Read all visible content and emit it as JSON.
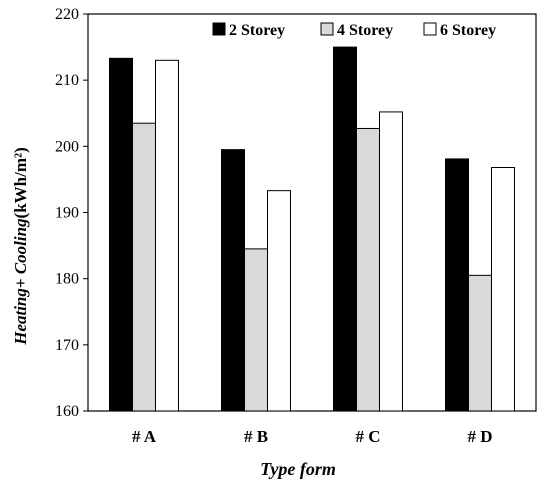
{
  "chart_data": {
    "type": "bar",
    "categories": [
      "# A",
      "# B",
      "# C",
      "# D"
    ],
    "series": [
      {
        "name": "2 Storey",
        "values": [
          213.3,
          199.5,
          215.0,
          198.1
        ],
        "color": "#000000"
      },
      {
        "name": "4 Storey",
        "values": [
          203.5,
          184.5,
          202.7,
          180.5
        ],
        "color": "#d9d9d9"
      },
      {
        "name": "6 Storey",
        "values": [
          213.0,
          193.3,
          205.2,
          196.8
        ],
        "color": "#ffffff"
      }
    ],
    "title": "",
    "xlabel": "Type form",
    "ylabel_italic": "Heating+ Cooling",
    "ylabel_unit": "(kWh/m²)",
    "ylim": [
      160,
      220
    ],
    "yticks": [
      "160",
      "170",
      "180",
      "190",
      "200",
      "210",
      "220"
    ],
    "grid": false,
    "legend_position": "top-right"
  }
}
